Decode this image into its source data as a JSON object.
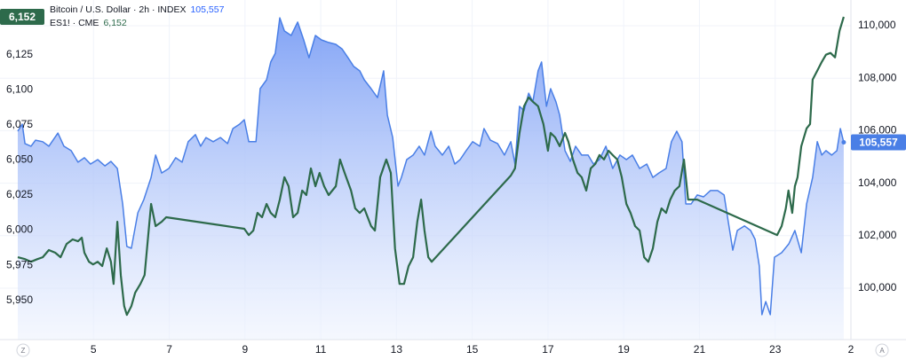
{
  "chart_data": {
    "type": "line",
    "legend": [
      {
        "name": "Bitcoin / U.S. Dollar · 2h · INDEX",
        "value_label": "105,557"
      },
      {
        "name": "ES1! · CME",
        "value_label": "6,152"
      }
    ],
    "xlim": [
      3,
      25
    ],
    "xticks": [
      5,
      7,
      9,
      11,
      13,
      15,
      17,
      19,
      21,
      23,
      {
        "value": 25,
        "label": "2"
      }
    ],
    "ylim": [
      5922,
      6164
    ],
    "yticks": [
      {
        "value": 5950,
        "label": "5,950"
      },
      {
        "value": 5975,
        "label": "5,975"
      },
      {
        "value": 6000,
        "label": "6,000"
      },
      {
        "value": 6025,
        "label": "6,025"
      },
      {
        "value": 6050,
        "label": "6,050"
      },
      {
        "value": 6075,
        "label": "6,075"
      },
      {
        "value": 6100,
        "label": "6,100"
      },
      {
        "value": 6125,
        "label": "6,125"
      }
    ],
    "y2lim": [
      98040,
      110980
    ],
    "y2ticks": [
      {
        "value": 100000,
        "label": "100,000"
      },
      {
        "value": 102000,
        "label": "102,000"
      },
      {
        "value": 104000,
        "label": "104,000"
      },
      {
        "value": 106000,
        "label": "106,000"
      },
      {
        "value": 108000,
        "label": "108,000"
      },
      {
        "value": 110000,
        "label": "110,000"
      }
    ],
    "grid": true,
    "series": [
      {
        "name": "Bitcoin / U.S. Dollar",
        "axis": "y2",
        "style": "area",
        "color": "#4a7fe6",
        "last_label": "105,557",
        "x": [
          3.0,
          3.12,
          3.19,
          3.35,
          3.47,
          3.66,
          3.82,
          4.06,
          4.22,
          4.41,
          4.59,
          4.76,
          4.92,
          5.11,
          5.3,
          5.46,
          5.63,
          5.77,
          5.88,
          6.0,
          6.17,
          6.33,
          6.52,
          6.64,
          6.8,
          6.99,
          7.17,
          7.34,
          7.5,
          7.69,
          7.83,
          7.97,
          8.16,
          8.35,
          8.54,
          8.68,
          8.86,
          8.98,
          9.1,
          9.29,
          9.4,
          9.57,
          9.68,
          9.8,
          9.92,
          10.04,
          10.22,
          10.39,
          10.55,
          10.69,
          10.86,
          11.02,
          11.21,
          11.4,
          11.56,
          11.72,
          11.87,
          12.03,
          12.15,
          12.33,
          12.5,
          12.66,
          12.76,
          12.9,
          13.04,
          13.13,
          13.27,
          13.44,
          13.6,
          13.74,
          13.91,
          14.02,
          14.21,
          14.38,
          14.54,
          14.68,
          14.84,
          15.01,
          15.2,
          15.31,
          15.48,
          15.67,
          15.85,
          16.02,
          16.13,
          16.25,
          16.37,
          16.49,
          16.6,
          16.74,
          16.83,
          16.96,
          17.07,
          17.21,
          17.31,
          17.45,
          17.59,
          17.73,
          17.89,
          18.06,
          18.2,
          18.36,
          18.53,
          18.71,
          18.9,
          19.07,
          19.23,
          19.42,
          19.61,
          19.77,
          19.93,
          20.12,
          20.26,
          20.4,
          20.54,
          20.64,
          20.78,
          20.94,
          21.11,
          21.29,
          21.48,
          21.65,
          21.76,
          21.88,
          22.0,
          22.19,
          22.35,
          22.47,
          22.58,
          22.65,
          22.75,
          22.87,
          22.98,
          23.17,
          23.36,
          23.52,
          23.69,
          23.83,
          23.99,
          24.11,
          24.23,
          24.34,
          24.49,
          24.63,
          24.72,
          24.81
        ],
        "values": [
          105980,
          106250,
          105510,
          105410,
          105640,
          105580,
          105410,
          105910,
          105410,
          105240,
          104800,
          104970,
          104730,
          104900,
          104660,
          104830,
          104560,
          103210,
          101590,
          101520,
          102870,
          103380,
          104220,
          105070,
          104390,
          104560,
          104970,
          104800,
          105580,
          105850,
          105410,
          105740,
          105580,
          105740,
          105510,
          106080,
          106250,
          106420,
          105580,
          105580,
          107600,
          107940,
          108620,
          108950,
          110300,
          109800,
          109630,
          110140,
          109460,
          108780,
          109630,
          109460,
          109360,
          109290,
          109120,
          108780,
          108450,
          108280,
          107940,
          107600,
          107260,
          108280,
          106590,
          105740,
          103890,
          104220,
          104900,
          105070,
          105410,
          105070,
          105980,
          105410,
          105070,
          105410,
          104730,
          104900,
          105240,
          105580,
          105410,
          106080,
          105640,
          105510,
          105070,
          105580,
          104730,
          106930,
          106760,
          107430,
          107100,
          108280,
          108620,
          106930,
          107600,
          107100,
          106590,
          105240,
          104830,
          105410,
          105070,
          105070,
          104730,
          104900,
          105410,
          104560,
          105070,
          104900,
          105070,
          104560,
          104730,
          104220,
          104390,
          104560,
          105580,
          105980,
          105580,
          103210,
          103210,
          103550,
          103480,
          103720,
          103720,
          103550,
          102530,
          101450,
          102200,
          102370,
          102200,
          101860,
          100850,
          98990,
          99490,
          98990,
          101180,
          101350,
          101690,
          102200,
          101350,
          103210,
          104220,
          105580,
          105070,
          105240,
          105070,
          105240,
          106080,
          105557
        ]
      },
      {
        "name": "ES1!",
        "axis": "y",
        "style": "line",
        "color": "#2d6a4b",
        "last_label": "6,152",
        "x": [
          3.0,
          3.19,
          3.35,
          3.52,
          3.66,
          3.82,
          3.99,
          4.13,
          4.29,
          4.45,
          4.59,
          4.69,
          4.76,
          4.88,
          4.99,
          5.11,
          5.23,
          5.35,
          5.46,
          5.53,
          5.63,
          5.72,
          5.81,
          5.88,
          6.0,
          6.1,
          6.24,
          6.35,
          6.52,
          6.64,
          6.8,
          6.92,
          8.98,
          9.1,
          9.22,
          9.33,
          9.45,
          9.57,
          9.68,
          9.8,
          9.92,
          10.04,
          10.15,
          10.27,
          10.39,
          10.51,
          10.62,
          10.74,
          10.86,
          10.97,
          11.09,
          11.21,
          11.4,
          11.51,
          11.63,
          11.8,
          11.91,
          12.03,
          12.15,
          12.33,
          12.43,
          12.57,
          12.73,
          12.85,
          12.96,
          13.08,
          13.2,
          13.32,
          13.44,
          13.55,
          13.65,
          13.74,
          13.84,
          13.93,
          16.02,
          16.13,
          16.25,
          16.37,
          16.49,
          16.6,
          16.74,
          16.88,
          17.0,
          17.07,
          17.19,
          17.31,
          17.45,
          17.54,
          17.66,
          17.78,
          17.89,
          18.01,
          18.13,
          18.25,
          18.36,
          18.48,
          18.6,
          18.71,
          18.83,
          18.95,
          19.07,
          19.18,
          19.3,
          19.42,
          19.54,
          19.65,
          19.77,
          19.89,
          20.0,
          20.12,
          20.23,
          20.35,
          20.47,
          20.59,
          20.7,
          20.94,
          23.05,
          23.17,
          23.28,
          23.35,
          23.45,
          23.52,
          23.59,
          23.69,
          23.83,
          23.92,
          23.99,
          24.11,
          24.23,
          24.34,
          24.46,
          24.58,
          24.7,
          24.81
        ],
        "values": [
          5980.7,
          5979.4,
          5977.5,
          5979.4,
          5980.7,
          5985.8,
          5983.9,
          5980.7,
          5990.2,
          5993.4,
          5992.1,
          5994.6,
          5983.9,
          5977.5,
          5975.6,
          5977.5,
          5974.4,
          5987.0,
          5977.5,
          5961.7,
          6006.0,
          5968.0,
          5945.9,
          5939.6,
          5945.9,
          5955.4,
          5961.7,
          5968.0,
          6018.7,
          6002.9,
          6006.0,
          6009.2,
          6001.0,
          5996.5,
          5999.7,
          6012.3,
          6009.2,
          6018.7,
          6012.3,
          6009.2,
          6021.8,
          6037.7,
          6031.3,
          6009.2,
          6012.3,
          6028.2,
          6025.0,
          6044.0,
          6031.3,
          6040.8,
          6031.3,
          6025.0,
          6031.3,
          6050.3,
          6040.8,
          6028.2,
          6015.5,
          6012.3,
          6015.5,
          6002.9,
          5999.7,
          6037.7,
          6050.3,
          6040.8,
          5987.0,
          5961.7,
          5961.7,
          5974.4,
          5980.7,
          6006.0,
          6021.8,
          5999.7,
          5980.7,
          5977.5,
          6038.9,
          6044.0,
          6069.3,
          6088.3,
          6094.6,
          6091.5,
          6088.3,
          6075.6,
          6056.6,
          6069.3,
          6066.1,
          6059.8,
          6069.3,
          6063.0,
          6050.3,
          6040.8,
          6037.7,
          6028.2,
          6044.0,
          6047.2,
          6053.5,
          6050.3,
          6056.6,
          6053.5,
          6050.3,
          6037.7,
          6018.7,
          6012.3,
          6002.9,
          5999.7,
          5980.7,
          5977.5,
          5987.0,
          6006.0,
          6015.5,
          6012.3,
          6021.8,
          6028.2,
          6031.3,
          6050.3,
          6021.8,
          6021.8,
          5996.5,
          6002.9,
          6015.5,
          6028.2,
          6012.3,
          6031.3,
          6037.7,
          6059.8,
          6072.5,
          6075.6,
          6107.3,
          6113.6,
          6119.9,
          6125.0,
          6126.3,
          6123.1,
          6142.1,
          6152
        ]
      }
    ],
    "ui": {
      "left_button": "Z",
      "right_button": "A"
    }
  }
}
